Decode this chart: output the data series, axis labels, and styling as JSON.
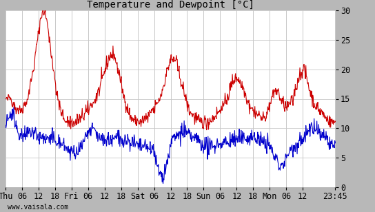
{
  "title": "Temperature and Dewpoint [°C]",
  "ylim": [
    0,
    30
  ],
  "yticks": [
    0,
    5,
    10,
    15,
    20,
    25,
    30
  ],
  "x_tick_labels": [
    "Thu",
    "06",
    "12",
    "18",
    "Fri",
    "06",
    "12",
    "18",
    "Sat",
    "06",
    "12",
    "18",
    "Sun",
    "06",
    "12",
    "18",
    "Mon",
    "06",
    "12",
    "23:45"
  ],
  "bg_color": "#ffffff",
  "outer_bg": "#b8b8b8",
  "temp_color": "#cc0000",
  "dewp_color": "#0000cc",
  "grid_color": "#c8c8c8",
  "title_fontsize": 10,
  "tick_fontsize": 8.5,
  "line_width": 0.8,
  "watermark": "www.vaisala.com"
}
